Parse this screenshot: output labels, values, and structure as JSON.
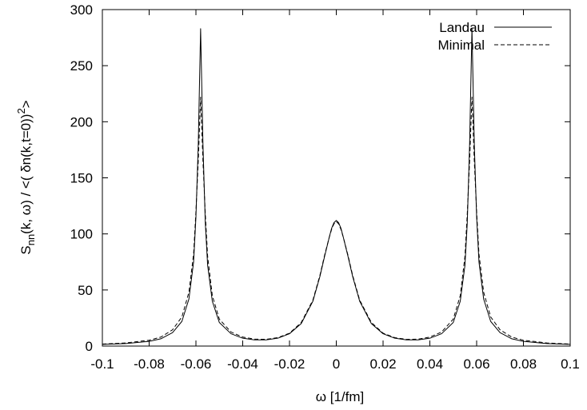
{
  "chart_data": {
    "type": "line",
    "xlabel": "ω [1/fm]",
    "ylabel": {
      "base": "S",
      "sub": "nn",
      "middle": "(k, ω) / <( δn(k,t=0))",
      "sup": "2",
      "end": ">"
    },
    "xlim": [
      -0.1,
      0.1
    ],
    "ylim": [
      0,
      300
    ],
    "x_ticks": [
      -0.1,
      -0.08,
      -0.06,
      -0.04,
      -0.02,
      0,
      0.02,
      0.04,
      0.06,
      0.08,
      0.1
    ],
    "x_tick_labels": [
      "-0.1",
      "-0.08",
      "-0.06",
      "-0.04",
      "-0.02",
      "0",
      "0.02",
      "0.04",
      "0.06",
      "0.08",
      "0.1"
    ],
    "y_ticks": [
      0,
      50,
      100,
      150,
      200,
      250,
      300
    ],
    "y_tick_labels": [
      "0",
      "50",
      "100",
      "150",
      "200",
      "250",
      "300"
    ],
    "grid": false,
    "legend_position": "top-right",
    "series": [
      {
        "name": "Landau",
        "style": "solid",
        "x": [
          -0.1,
          -0.09,
          -0.08,
          -0.075,
          -0.07,
          -0.066,
          -0.063,
          -0.061,
          -0.06,
          -0.059,
          -0.058,
          -0.057,
          -0.056,
          -0.055,
          -0.053,
          -0.05,
          -0.045,
          -0.04,
          -0.035,
          -0.03,
          -0.025,
          -0.02,
          -0.015,
          -0.01,
          -0.007,
          -0.005,
          -0.003,
          -0.002,
          -0.001,
          0,
          0.001,
          0.002,
          0.003,
          0.005,
          0.007,
          0.01,
          0.015,
          0.02,
          0.025,
          0.03,
          0.035,
          0.04,
          0.045,
          0.05,
          0.053,
          0.055,
          0.056,
          0.057,
          0.058,
          0.059,
          0.06,
          0.061,
          0.063,
          0.066,
          0.07,
          0.075,
          0.08,
          0.09,
          0.1
        ],
        "y": [
          1.5,
          2.2,
          4.2,
          6.5,
          12,
          22,
          42,
          75,
          115,
          180,
          283,
          180,
          110,
          72,
          40,
          21,
          11,
          7,
          5.5,
          5.5,
          7,
          11,
          20,
          40,
          62,
          80,
          97,
          105,
          110,
          112,
          110,
          105,
          97,
          80,
          62,
          40,
          20,
          11,
          7,
          5.5,
          5.5,
          7,
          11,
          21,
          40,
          72,
          110,
          180,
          283,
          180,
          115,
          75,
          42,
          22,
          12,
          6.5,
          4.2,
          2.2,
          1.5
        ]
      },
      {
        "name": "Minimal",
        "style": "dashed",
        "x": [
          -0.1,
          -0.09,
          -0.08,
          -0.075,
          -0.07,
          -0.066,
          -0.063,
          -0.061,
          -0.06,
          -0.059,
          -0.058,
          -0.057,
          -0.056,
          -0.055,
          -0.053,
          -0.05,
          -0.045,
          -0.04,
          -0.035,
          -0.03,
          -0.025,
          -0.02,
          -0.015,
          -0.01,
          -0.007,
          -0.005,
          -0.003,
          -0.002,
          -0.001,
          0,
          0.001,
          0.002,
          0.003,
          0.005,
          0.007,
          0.01,
          0.015,
          0.02,
          0.025,
          0.03,
          0.035,
          0.04,
          0.045,
          0.05,
          0.053,
          0.055,
          0.056,
          0.057,
          0.058,
          0.059,
          0.06,
          0.061,
          0.063,
          0.066,
          0.07,
          0.075,
          0.08,
          0.09,
          0.1
        ],
        "y": [
          1.8,
          2.8,
          5.2,
          8,
          14.5,
          26,
          48,
          82,
          120,
          165,
          222,
          165,
          118,
          80,
          45,
          24,
          12.5,
          8,
          6.2,
          6,
          7.5,
          11.5,
          21,
          41,
          63,
          81,
          97,
          104,
          109,
          111,
          109,
          104,
          97,
          81,
          63,
          41,
          21,
          11.5,
          7.5,
          6,
          6.2,
          8,
          12.5,
          24,
          45,
          80,
          118,
          165,
          222,
          165,
          120,
          82,
          48,
          26,
          14.5,
          8,
          5.2,
          2.8,
          1.8
        ]
      }
    ]
  }
}
